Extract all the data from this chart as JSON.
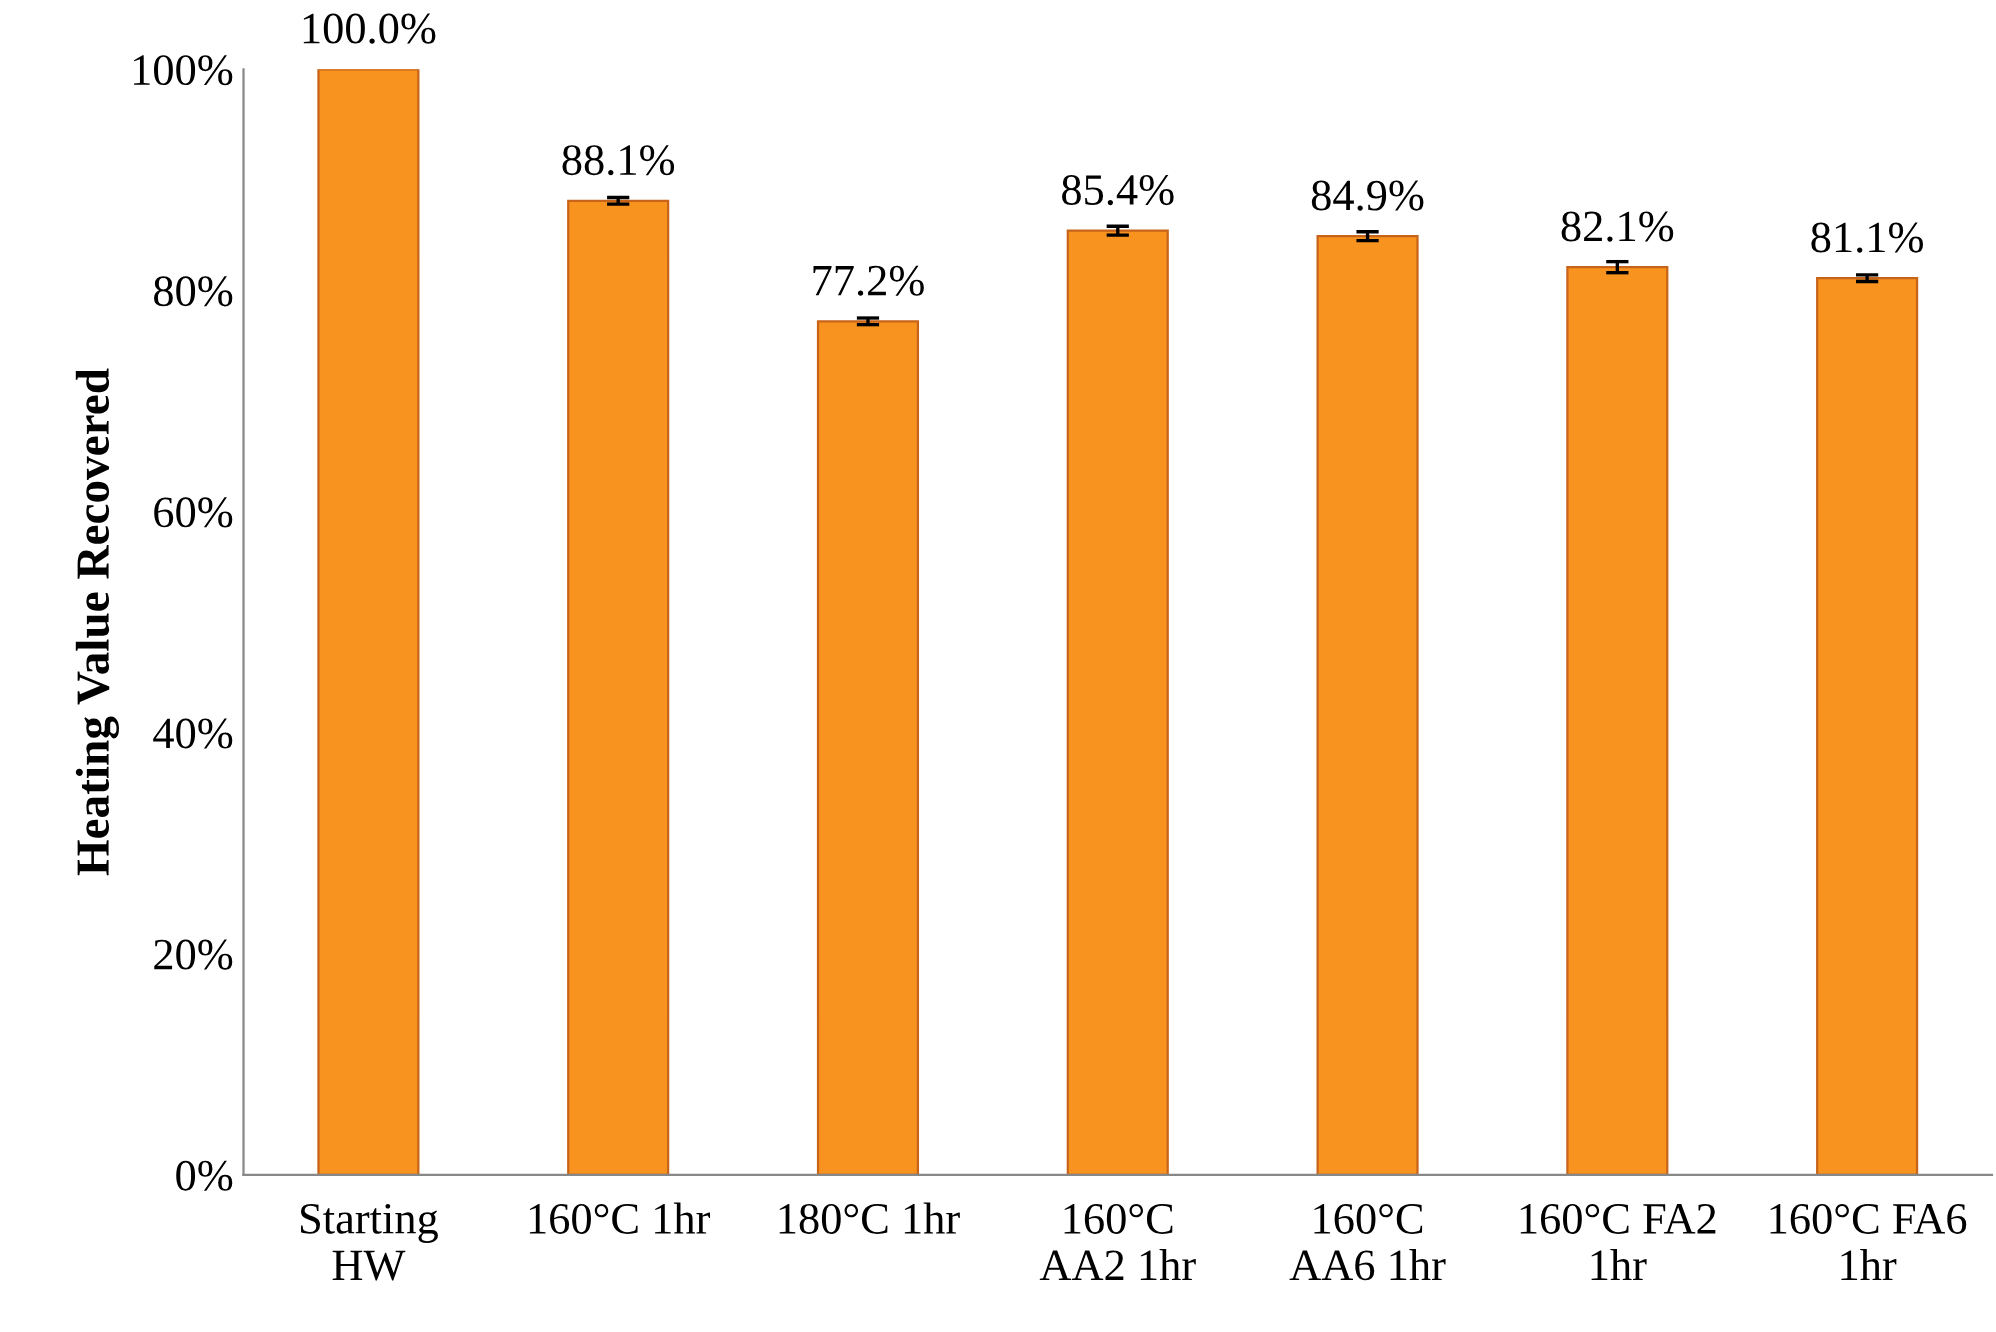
{
  "chart_data": {
    "type": "bar",
    "ylabel": "Heating Value Recovered",
    "categories": [
      "Starting\nHW",
      "160°C 1hr",
      "180°C 1hr",
      "160°C\nAA2 1hr",
      "160°C\nAA6 1hr",
      "160°C FA2\n1hr",
      "160°C FA6\n1hr"
    ],
    "values": [
      100.0,
      88.1,
      77.2,
      85.4,
      84.9,
      82.1,
      81.1
    ],
    "value_labels": [
      "100.0%",
      "88.1%",
      "77.2%",
      "85.4%",
      "84.9%",
      "82.1%",
      "81.1%"
    ],
    "errors": [
      null,
      0.3,
      0.3,
      0.4,
      0.4,
      0.5,
      0.3
    ],
    "color": "#f7931e",
    "ylim": [
      0,
      100
    ],
    "yticks": [
      {
        "value": 0,
        "label": "0%"
      },
      {
        "value": 20,
        "label": "20%"
      },
      {
        "value": 40,
        "label": "40%"
      },
      {
        "value": 60,
        "label": "60%"
      },
      {
        "value": 80,
        "label": "80%"
      },
      {
        "value": 100,
        "label": "100%"
      }
    ],
    "grid": false
  }
}
